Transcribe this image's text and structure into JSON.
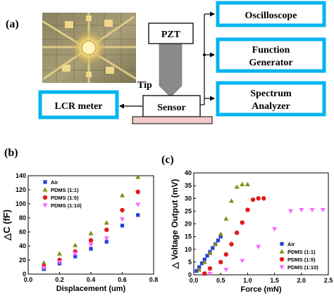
{
  "panel_labels": {
    "a": "(a)",
    "b": "(b)",
    "c": "(c)"
  },
  "setup": {
    "pzt": "PZT",
    "tip": "Tip",
    "sensor": "Sensor",
    "lcr": "LCR meter",
    "oscilloscope": "Oscilloscope",
    "function_generator": [
      "Function",
      "Generator"
    ],
    "spectrum_analyzer": [
      "Spectrum",
      "Analyzer"
    ],
    "box_border_color": "#00b4f0",
    "stage_color": "#f2c9c9",
    "tip_color": "#8a8a8a"
  },
  "chart_data": [
    {
      "type": "scatter",
      "xlabel": "Displacement (um)",
      "ylabel": "△C (fF)",
      "xlim": [
        0.0,
        0.8
      ],
      "ylim": [
        0,
        140
      ],
      "xticks": [
        "0.0",
        "0.2",
        "0.4",
        "0.6",
        "0.8"
      ],
      "yticks": [
        "0",
        "20",
        "40",
        "60",
        "80",
        "100",
        "120",
        "140"
      ],
      "legend_position": "top-left",
      "series": [
        {
          "name": "Air",
          "marker": "square",
          "color": "#1f3fd6",
          "x": [
            0.1,
            0.2,
            0.3,
            0.4,
            0.5,
            0.6,
            0.7
          ],
          "y": [
            7,
            15,
            25,
            36,
            46,
            69,
            84
          ]
        },
        {
          "name": "PDMS  (1:1)",
          "marker": "triangle",
          "color": "#8a8a1a",
          "x": [
            0.1,
            0.2,
            0.3,
            0.4,
            0.5,
            0.6,
            0.7
          ],
          "y": [
            16,
            29,
            41,
            58,
            73,
            112,
            138
          ]
        },
        {
          "name": "PDMS  (1:5)",
          "marker": "circle",
          "color": "#e01b1b",
          "x": [
            0.1,
            0.2,
            0.3,
            0.4,
            0.5,
            0.6,
            0.7
          ],
          "y": [
            11,
            20,
            32,
            48,
            63,
            91,
            117
          ]
        },
        {
          "name": "PDMS  (1:10)",
          "marker": "triangle-down",
          "color": "#ff66ff",
          "x": [
            0.1,
            0.2,
            0.3,
            0.4,
            0.5,
            0.6,
            0.7
          ],
          "y": [
            9,
            17,
            29,
            42,
            51,
            78,
            99
          ]
        }
      ]
    },
    {
      "type": "scatter",
      "xlabel": "Force (mN)",
      "ylabel": "△ Voltage Output (mV)",
      "xlim": [
        0.0,
        2.5
      ],
      "ylim": [
        0,
        40
      ],
      "xticks": [
        "0.0",
        "0.5",
        "1.0",
        "1.5",
        "2.0",
        "2.5"
      ],
      "yticks": [
        "0",
        "5",
        "10",
        "15",
        "20",
        "25",
        "30",
        "35",
        "40"
      ],
      "legend_position": "bottom-right",
      "series": [
        {
          "name": "Air",
          "marker": "square",
          "color": "#1f3fd6",
          "x": [
            0.05,
            0.1,
            0.15,
            0.2,
            0.25,
            0.3,
            0.35,
            0.4,
            0.45,
            0.5
          ],
          "y": [
            1.5,
            3,
            4.5,
            6,
            7.5,
            9,
            10.5,
            12,
            13.5,
            15
          ]
        },
        {
          "name": "PDMS  (1:1)",
          "marker": "triangle",
          "color": "#8a8a1a",
          "x": [
            0.1,
            0.2,
            0.3,
            0.4,
            0.5,
            0.6,
            0.7,
            0.8,
            0.9,
            1.0
          ],
          "y": [
            2,
            5,
            8.5,
            12,
            16,
            22,
            29,
            34.5,
            35.5,
            35.5
          ]
        },
        {
          "name": "PDMS  (1:5)",
          "marker": "circle",
          "color": "#e01b1b",
          "x": [
            0.2,
            0.3,
            0.5,
            0.6,
            0.7,
            0.8,
            0.9,
            1.0,
            1.1,
            1.2,
            1.3
          ],
          "y": [
            0.5,
            2.5,
            5,
            8,
            12,
            16.5,
            20.5,
            25.5,
            29.5,
            30,
            30
          ]
        },
        {
          "name": "PDMS  (1:10)",
          "marker": "triangle-down",
          "color": "#ff66ff",
          "x": [
            0.3,
            0.6,
            0.9,
            1.2,
            1.5,
            1.8,
            2.0,
            2.2,
            2.4
          ],
          "y": [
            0.5,
            2,
            5.5,
            11,
            18,
            25,
            25.5,
            25.5,
            25.5
          ]
        }
      ]
    }
  ]
}
